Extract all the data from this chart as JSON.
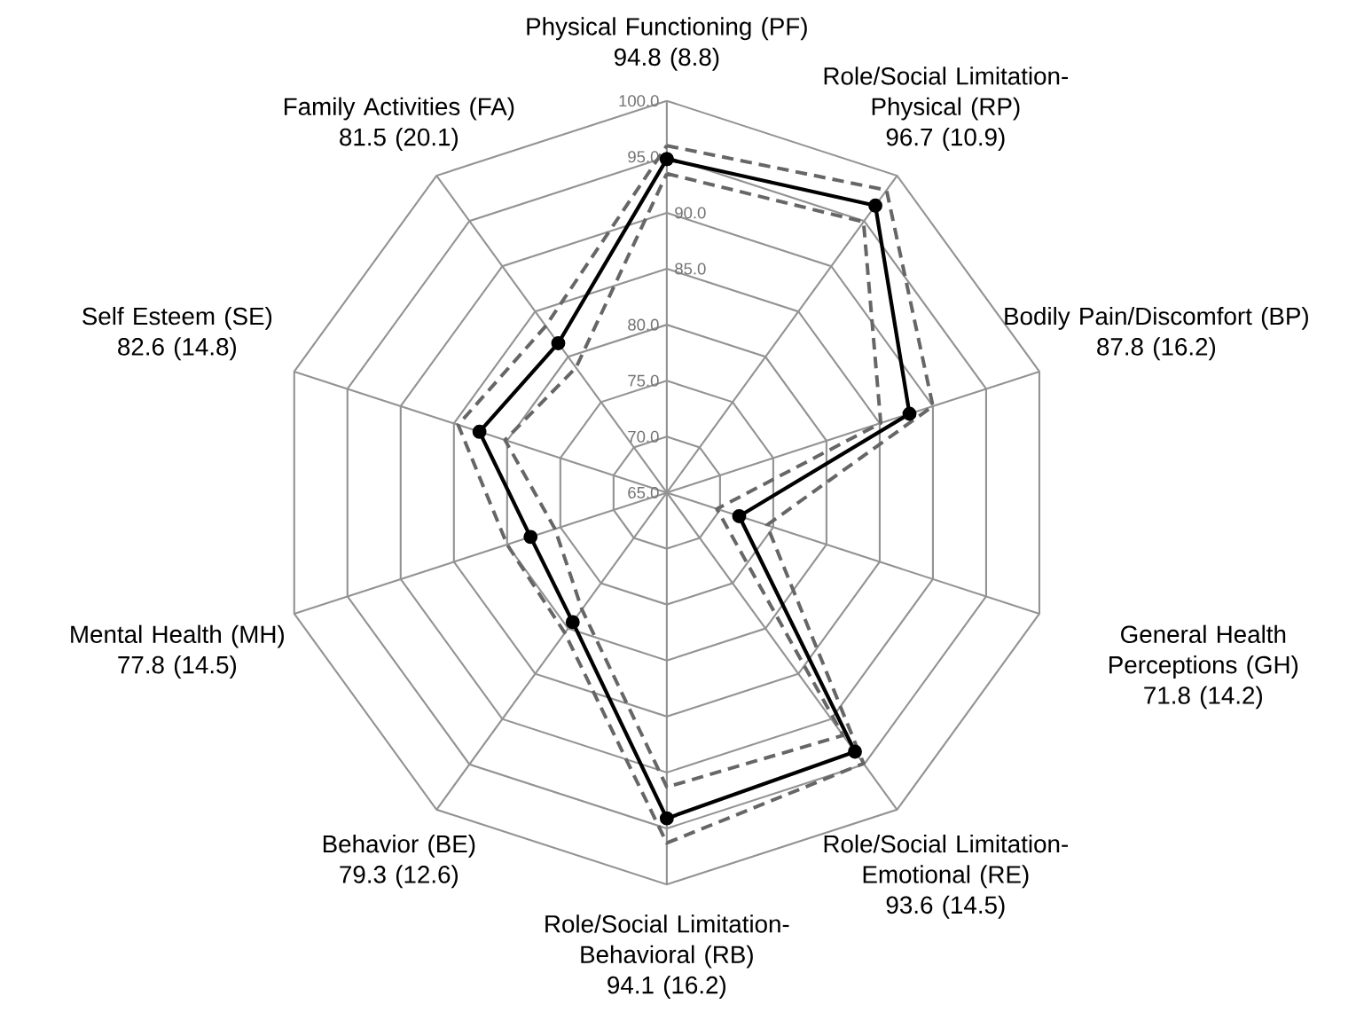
{
  "chart_data": {
    "type": "radar",
    "categories": [
      "Physical Functioning (PF)",
      "Role/Social Limitation-Physical (RP)",
      "Bodily Pain/Discomfort (BP)",
      "General Health Perceptions (GH)",
      "Role/Social Limitation-Emotional (RE)",
      "Role/Social Limitation-Behavioral (RB)",
      "Behavior (BE)",
      "Mental Health (MH)",
      "Self Esteem (SE)",
      "Family Activities (FA)"
    ],
    "ylim": [
      65,
      100
    ],
    "yticks": [
      {
        "value": 65,
        "label": "65.0"
      },
      {
        "value": 70,
        "label": "70.0"
      },
      {
        "value": 75,
        "label": "75.0"
      },
      {
        "value": 80,
        "label": "80.0"
      },
      {
        "value": 85,
        "label": "85.0"
      },
      {
        "value": 90,
        "label": "90.0"
      },
      {
        "value": 95,
        "label": "95.0"
      },
      {
        "value": 100,
        "label": "100.0"
      }
    ],
    "grid": true,
    "annotations": [
      "94.8 (8.8)",
      "96.7 (10.9)",
      "87.8 (16.2)",
      "71.8 (14.2)",
      "93.6 (14.5)",
      "94.1 (16.2)",
      "79.3 (12.6)",
      "77.8 (14.5)",
      "82.6 (14.8)",
      "81.5 (20.1)"
    ],
    "series": [
      {
        "color": "#000000",
        "marker": "circle",
        "line_style": "solid",
        "values": [
          94.8,
          96.7,
          87.8,
          71.8,
          93.6,
          94.1,
          79.3,
          77.8,
          82.6,
          81.5
        ]
      },
      {
        "color": "#666666",
        "marker": "none",
        "line_style": "dashed",
        "values": [
          96.0,
          98.4,
          90.0,
          74.4,
          94.9,
          96.3,
          80.5,
          80.0,
          84.6,
          83.4
        ]
      },
      {
        "color": "#666666",
        "marker": "none",
        "line_style": "dashed",
        "values": [
          93.5,
          94.9,
          85.1,
          69.7,
          91.8,
          91.3,
          77.9,
          75.5,
          80.2,
          78.8
        ]
      }
    ]
  }
}
